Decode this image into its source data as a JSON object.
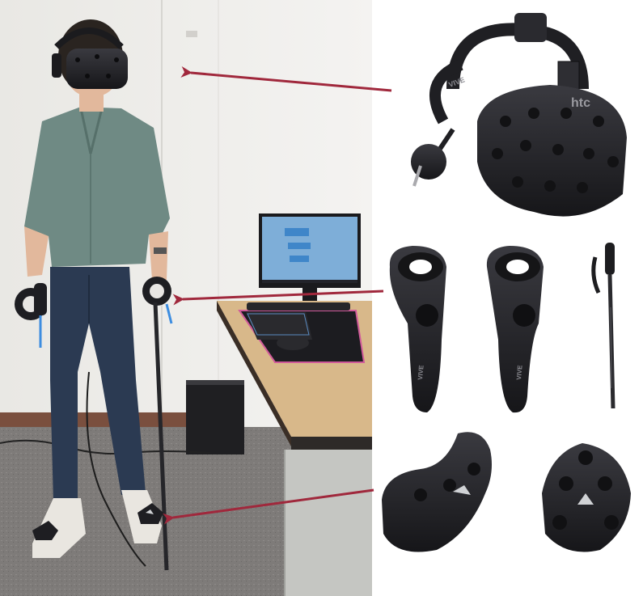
{
  "figure": {
    "headset_brand": "htc",
    "headstrap_label": "VIVE",
    "controller_label": "VIVE",
    "monitor_brand": "",
    "colors": {
      "arrow": "#a0283c",
      "device": "#222226",
      "wall": "#ecebe8",
      "floor": "#7d7a78",
      "desk": "#d8b88a",
      "shirt": "#6f8a84",
      "jeans": "#2b3a52",
      "mat_edge": "#d05a9a"
    },
    "icons": [
      "arrow-headset",
      "arrow-controller",
      "arrow-tracker"
    ]
  }
}
